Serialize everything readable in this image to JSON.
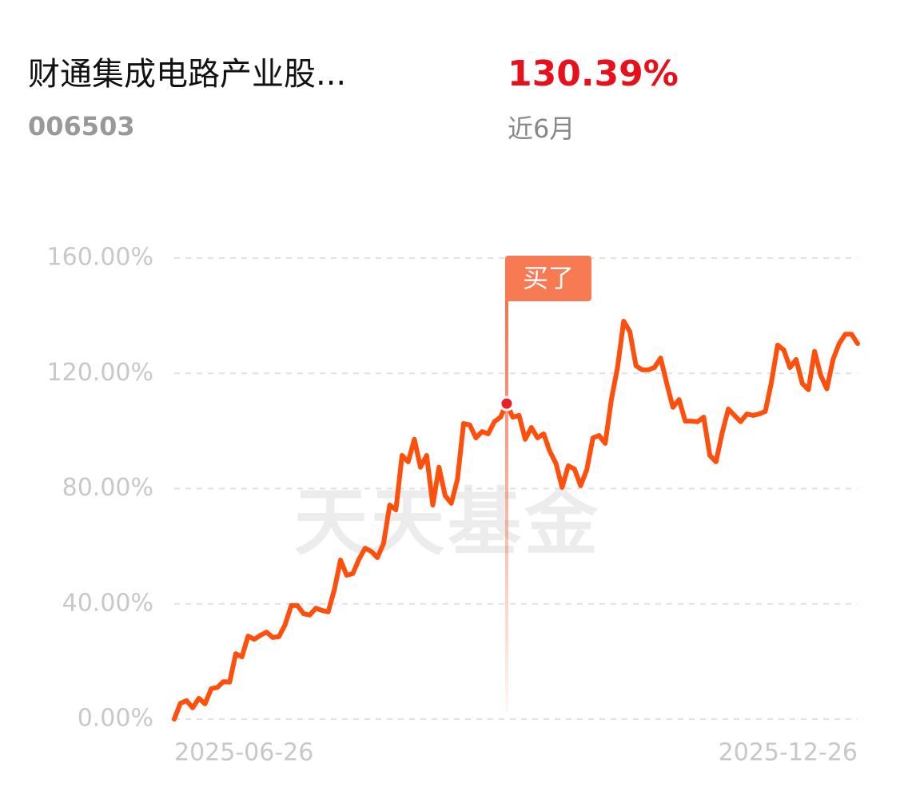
{
  "header": {
    "return": "130.39%",
    "period": "近6月"
  },
  "watermark": "天天基金",
  "chart_data": {
    "type": "line",
    "title": "财通集成电路产业股...",
    "subtitle": "006503",
    "categories": [
      "2025-06-26",
      null,
      null,
      null,
      null,
      null,
      null,
      null,
      null,
      null,
      null,
      null,
      null,
      null,
      null,
      null,
      null,
      null,
      null,
      null,
      null,
      null,
      null,
      null,
      null,
      null,
      null,
      null,
      null,
      null,
      null,
      null,
      null,
      null,
      null,
      null,
      null,
      null,
      null,
      null,
      null,
      null,
      null,
      null,
      null,
      null,
      null,
      null,
      null,
      null,
      null,
      null,
      null,
      null,
      null,
      null,
      null,
      null,
      null,
      null,
      null,
      null,
      null,
      null,
      null,
      null,
      null,
      null,
      null,
      null,
      null,
      null,
      null,
      null,
      null,
      null,
      null,
      null,
      null,
      null,
      null,
      null,
      null,
      null,
      null,
      null,
      null,
      null,
      null,
      null,
      null,
      null,
      null,
      null,
      null,
      null,
      null,
      null,
      null,
      null,
      null,
      null,
      null,
      null,
      null,
      null,
      null,
      null,
      null,
      null,
      null,
      "2025-12-26"
    ],
    "series": [
      {
        "color": "#ff4f0c",
        "values": [
          0,
          5.5,
          6.4,
          3.9,
          7.2,
          5.3,
          10.5,
          11,
          13,
          12.8,
          22.7,
          21.6,
          28.8,
          27.7,
          29.1,
          30.2,
          28.3,
          28.6,
          32.7,
          39.4,
          39.4,
          36.6,
          36.1,
          38.5,
          37.7,
          37.2,
          44.9,
          55.2,
          49.9,
          50.5,
          55.5,
          59.3,
          58.2,
          56,
          61,
          74.3,
          72.6,
          91.5,
          89.3,
          97.1,
          87.4,
          91.5,
          74.3,
          87.4,
          77.6,
          74.9,
          83.2,
          102.6,
          102.1,
          97.6,
          99.8,
          99,
          103.2,
          104.8,
          109.5,
          104.8,
          105.4,
          97.1,
          101.2,
          97.6,
          99,
          92.9,
          88.7,
          80.4,
          87.9,
          86.8,
          81,
          86.5,
          97.6,
          98.4,
          95.7,
          110.9,
          122,
          138.1,
          134.5,
          122.6,
          121.2,
          121.2,
          122,
          125.3,
          116.5,
          108.2,
          110.9,
          103.4,
          103.4,
          103.2,
          104.8,
          91.5,
          89.3,
          99.3,
          107.6,
          105.4,
          103.2,
          105.9,
          105.4,
          105.9,
          106.8,
          117,
          129.8,
          128.1,
          122,
          124.8,
          116.5,
          114.3,
          127.6,
          119.3,
          114.6,
          124.8,
          130.3,
          133.6,
          133.6,
          130.3
        ]
      }
    ],
    "ylim": [
      0,
      160
    ],
    "yticks": [
      {
        "value": 0,
        "label": "0.00%"
      },
      {
        "value": 40,
        "label": "40.00%"
      },
      {
        "value": 80,
        "label": "80.00%"
      },
      {
        "value": 120,
        "label": "120.00%"
      },
      {
        "value": 160,
        "label": "160.00%"
      }
    ],
    "grid": true,
    "annotations": [
      {
        "text": "买了",
        "index": 54
      }
    ]
  }
}
